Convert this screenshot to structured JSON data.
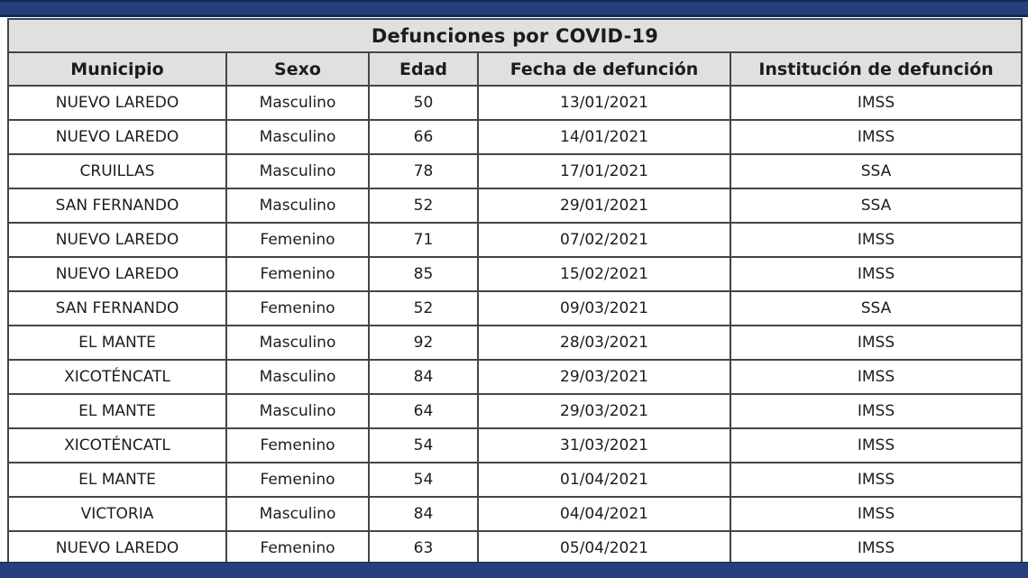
{
  "chart_data": {
    "type": "table",
    "title": "Defunciones por COVID-19",
    "columns": [
      "Municipio",
      "Sexo",
      "Edad",
      "Fecha de defunción",
      "Institución de defunción"
    ],
    "rows": [
      [
        "NUEVO LAREDO",
        "Masculino",
        "50",
        "13/01/2021",
        "IMSS"
      ],
      [
        "NUEVO LAREDO",
        "Masculino",
        "66",
        "14/01/2021",
        "IMSS"
      ],
      [
        "CRUILLAS",
        "Masculino",
        "78",
        "17/01/2021",
        "SSA"
      ],
      [
        "SAN FERNANDO",
        "Masculino",
        "52",
        "29/01/2021",
        "SSA"
      ],
      [
        "NUEVO LAREDO",
        "Femenino",
        "71",
        "07/02/2021",
        "IMSS"
      ],
      [
        "NUEVO LAREDO",
        "Femenino",
        "85",
        "15/02/2021",
        "IMSS"
      ],
      [
        "SAN FERNANDO",
        "Femenino",
        "52",
        "09/03/2021",
        "SSA"
      ],
      [
        "EL MANTE",
        "Masculino",
        "92",
        "28/03/2021",
        "IMSS"
      ],
      [
        "XICOTÉNCATL",
        "Masculino",
        "84",
        "29/03/2021",
        "IMSS"
      ],
      [
        "EL MANTE",
        "Masculino",
        "64",
        "29/03/2021",
        "IMSS"
      ],
      [
        "XICOTÉNCATL",
        "Femenino",
        "54",
        "31/03/2021",
        "IMSS"
      ],
      [
        "EL MANTE",
        "Femenino",
        "54",
        "01/04/2021",
        "IMSS"
      ],
      [
        "VICTORIA",
        "Masculino",
        "84",
        "04/04/2021",
        "IMSS"
      ],
      [
        "NUEVO LAREDO",
        "Femenino",
        "63",
        "05/04/2021",
        "IMSS"
      ]
    ],
    "layout_hints": {
      "grid": "on",
      "header_rows": 2,
      "title_row_merged": true
    }
  },
  "colors": {
    "banner_blue": "#24407c",
    "banner_edge": "#16294f",
    "header_bg": "#e0e0e0",
    "grid_border": "#454545",
    "text": "#1c1c1c",
    "page_bg": "#ffffff"
  }
}
